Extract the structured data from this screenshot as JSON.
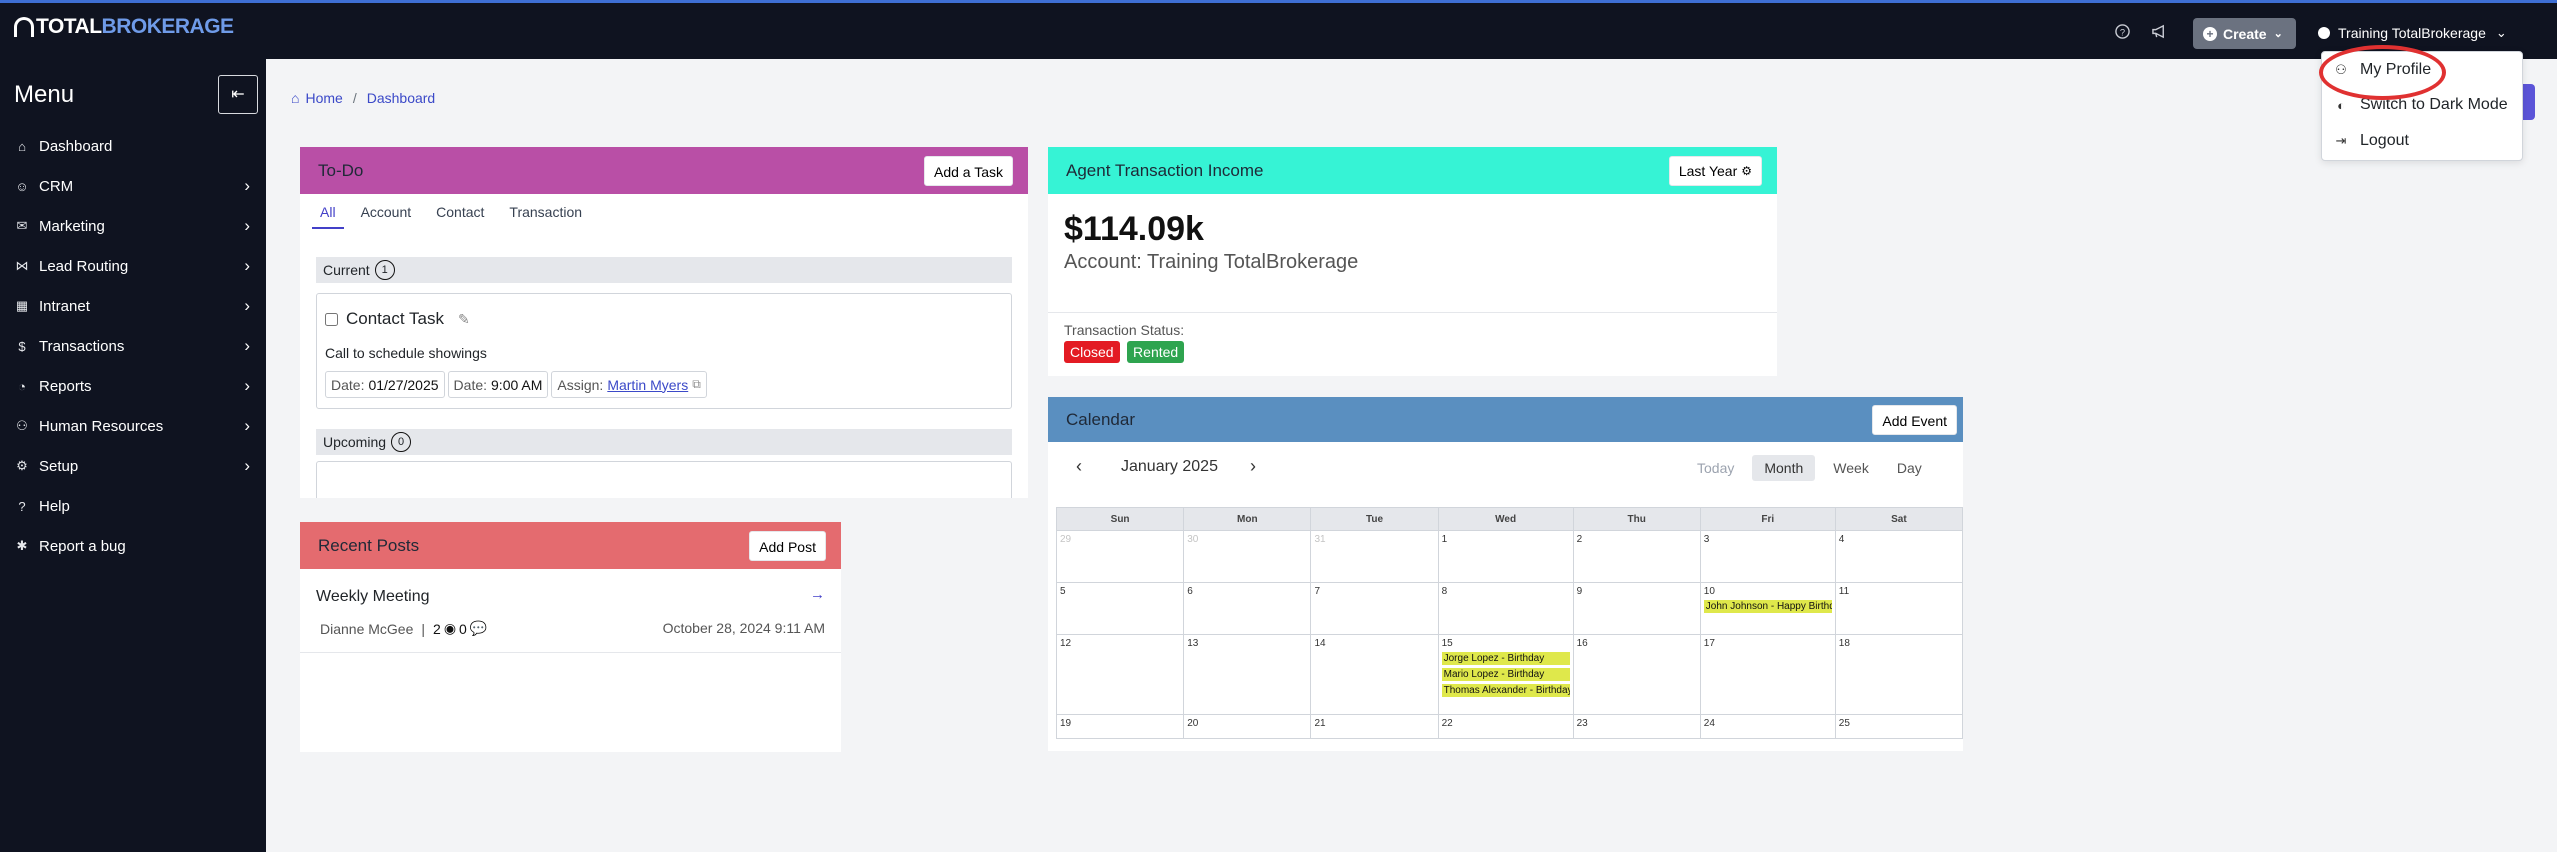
{
  "brand": {
    "part1": "TOTAL",
    "part2": "BROKERAGE"
  },
  "topbar": {
    "help_icon": "question-circle-icon",
    "announce_icon": "megaphone-icon",
    "create_label": "Create",
    "user_label": "Training TotalBrokerage"
  },
  "user_dropdown": {
    "items": [
      {
        "label": "My Profile",
        "icon": "user-gear-icon"
      },
      {
        "label": "Switch to Dark Mode",
        "icon": "half-circle-icon"
      },
      {
        "label": "Logout",
        "icon": "logout-icon"
      }
    ]
  },
  "sidebar": {
    "title": "Menu",
    "items": [
      {
        "label": "Dashboard",
        "icon": "home-icon",
        "chevron": false
      },
      {
        "label": "CRM",
        "icon": "users-icon",
        "chevron": true
      },
      {
        "label": "Marketing",
        "icon": "envelope-icon",
        "chevron": true
      },
      {
        "label": "Lead Routing",
        "icon": "network-icon",
        "chevron": true
      },
      {
        "label": "Intranet",
        "icon": "building-icon",
        "chevron": true
      },
      {
        "label": "Transactions",
        "icon": "dollar-circle-icon",
        "chevron": true
      },
      {
        "label": "Reports",
        "icon": "chart-icon",
        "chevron": true
      },
      {
        "label": "Human Resources",
        "icon": "handshake-icon",
        "chevron": true
      },
      {
        "label": "Setup",
        "icon": "gear-icon",
        "chevron": true
      },
      {
        "label": "Help",
        "icon": "question-icon",
        "chevron": false
      },
      {
        "label": "Report a bug",
        "icon": "bug-icon",
        "chevron": false
      }
    ]
  },
  "breadcrumb": {
    "home": "Home",
    "separator": "/",
    "current": "Dashboard"
  },
  "todo": {
    "title": "To-Do",
    "add_button": "Add a Task",
    "color": "#b94fa6",
    "tabs": [
      "All",
      "Account",
      "Contact",
      "Transaction"
    ],
    "current_label": "Current",
    "current_count": "1",
    "task": {
      "title": "Contact Task",
      "description": "Call to schedule showings",
      "date_label": "Date:",
      "date_value": "01/27/2025",
      "time_label": "Date:",
      "time_value": "9:00 AM",
      "assign_label": "Assign:",
      "assign_value": "Martin Myers"
    },
    "upcoming_label": "Upcoming",
    "upcoming_count": "0"
  },
  "income": {
    "title": "Agent Transaction Income",
    "color": "#36f3d5",
    "period_button": "Last Year",
    "amount": "$114.09k",
    "account": "Account: Training TotalBrokerage",
    "status_label": "Transaction Status:",
    "statuses": [
      {
        "label": "Closed",
        "color": "#e31b23"
      },
      {
        "label": "Rented",
        "color": "#2ea44f"
      }
    ]
  },
  "posts": {
    "title": "Recent Posts",
    "color": "#e46b6f",
    "add_button": "Add Post",
    "items": [
      {
        "title": "Weekly Meeting",
        "author": "Dianne McGee",
        "separator": "|",
        "views": "2",
        "comments": "0",
        "date": "October 28, 2024 9:11 AM"
      }
    ]
  },
  "calendar": {
    "title": "Calendar",
    "color": "#5a8fc0",
    "add_button": "Add Event",
    "month_label": "January 2025",
    "views": [
      "Today",
      "Month",
      "Week",
      "Day"
    ],
    "active_view": "Month",
    "weekdays": [
      "Sun",
      "Mon",
      "Tue",
      "Wed",
      "Thu",
      "Fri",
      "Sat"
    ],
    "weeks": [
      [
        {
          "d": "29",
          "m": true
        },
        {
          "d": "30",
          "m": true
        },
        {
          "d": "31",
          "m": true
        },
        {
          "d": "1"
        },
        {
          "d": "2"
        },
        {
          "d": "3"
        },
        {
          "d": "4"
        }
      ],
      [
        {
          "d": "5"
        },
        {
          "d": "6"
        },
        {
          "d": "7"
        },
        {
          "d": "8"
        },
        {
          "d": "9"
        },
        {
          "d": "10",
          "events": [
            "John Johnson - Happy Birthday"
          ]
        },
        {
          "d": "11"
        }
      ],
      [
        {
          "d": "12"
        },
        {
          "d": "13"
        },
        {
          "d": "14"
        },
        {
          "d": "15",
          "events": [
            "Jorge Lopez - Birthday",
            "Mario Lopez - Birthday",
            "Thomas Alexander - Birthday"
          ]
        },
        {
          "d": "16"
        },
        {
          "d": "17"
        },
        {
          "d": "18"
        }
      ],
      [
        {
          "d": "19"
        },
        {
          "d": "20"
        },
        {
          "d": "21"
        },
        {
          "d": "22"
        },
        {
          "d": "23"
        },
        {
          "d": "24"
        },
        {
          "d": "25"
        }
      ]
    ]
  }
}
